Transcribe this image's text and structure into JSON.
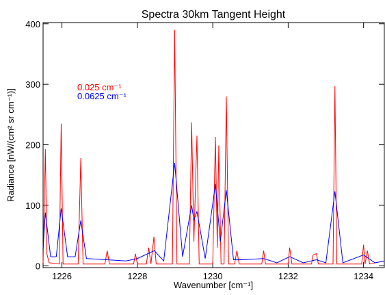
{
  "chart_data": {
    "type": "line",
    "title": "Spectra 30km Tangent Height",
    "x_label": "Wavenumber [cm⁻¹]",
    "y_label": "Radiance [nW/(cm² sr cm⁻¹)]",
    "xlim": [
      1225.5,
      1234.55
    ],
    "ylim": [
      -3,
      402
    ],
    "xticks": [
      1226,
      1228,
      1230,
      1232,
      1234
    ],
    "yticks": [
      0,
      100,
      200,
      300,
      400
    ],
    "grid": false,
    "series": [
      {
        "name": "0.025 cm⁻¹",
        "color": "#ff0000",
        "x": [
          1225.5,
          1225.56,
          1225.6,
          1225.66,
          1225.93,
          1225.98,
          1226.03,
          1226.43,
          1226.5,
          1226.56,
          1227.14,
          1227.2,
          1227.26,
          1227.9,
          1227.95,
          1228.0,
          1228.24,
          1228.3,
          1228.36,
          1228.44,
          1228.5,
          1228.93,
          1228.99,
          1229.05,
          1229.38,
          1229.44,
          1229.5,
          1229.58,
          1229.64,
          1230.0,
          1230.07,
          1230.12,
          1230.16,
          1230.22,
          1230.3,
          1230.36,
          1230.42,
          1230.58,
          1230.64,
          1230.7,
          1231.3,
          1231.35,
          1231.4,
          1232.0,
          1232.04,
          1232.1,
          1232.62,
          1232.66,
          1232.75,
          1232.8,
          1233.19,
          1233.24,
          1233.29,
          1233.95,
          1234.0,
          1234.04,
          1234.1,
          1234.16,
          1234.55
        ],
        "values": [
          5,
          193,
          20,
          5,
          3,
          235,
          3,
          3,
          178,
          3,
          3,
          25,
          3,
          3,
          20,
          3,
          3,
          30,
          3,
          48,
          3,
          3,
          390,
          3,
          3,
          237,
          40,
          215,
          3,
          3,
          213,
          30,
          199,
          3,
          3,
          280,
          3,
          3,
          25,
          3,
          3,
          25,
          3,
          3,
          30,
          3,
          3,
          18,
          20,
          3,
          3,
          297,
          3,
          3,
          35,
          3,
          25,
          3,
          8
        ]
      },
      {
        "name": "0.0625 cm⁻¹",
        "color": "#0000ff",
        "x": [
          1225.5,
          1225.56,
          1225.7,
          1225.85,
          1225.98,
          1226.15,
          1226.35,
          1226.5,
          1226.65,
          1227.2,
          1227.7,
          1228.0,
          1228.45,
          1228.7,
          1228.99,
          1229.2,
          1229.44,
          1229.5,
          1229.58,
          1229.8,
          1230.07,
          1230.2,
          1230.36,
          1230.55,
          1230.8,
          1231.35,
          1231.7,
          1232.04,
          1232.4,
          1232.75,
          1233.0,
          1233.24,
          1233.45,
          1234.0,
          1234.3,
          1234.55
        ],
        "values": [
          30,
          88,
          15,
          15,
          95,
          15,
          15,
          75,
          12,
          10,
          8,
          12,
          25,
          8,
          170,
          15,
          100,
          75,
          90,
          12,
          135,
          40,
          125,
          10,
          10,
          12,
          5,
          15,
          5,
          10,
          5,
          123,
          5,
          18,
          5,
          8
        ]
      }
    ]
  }
}
